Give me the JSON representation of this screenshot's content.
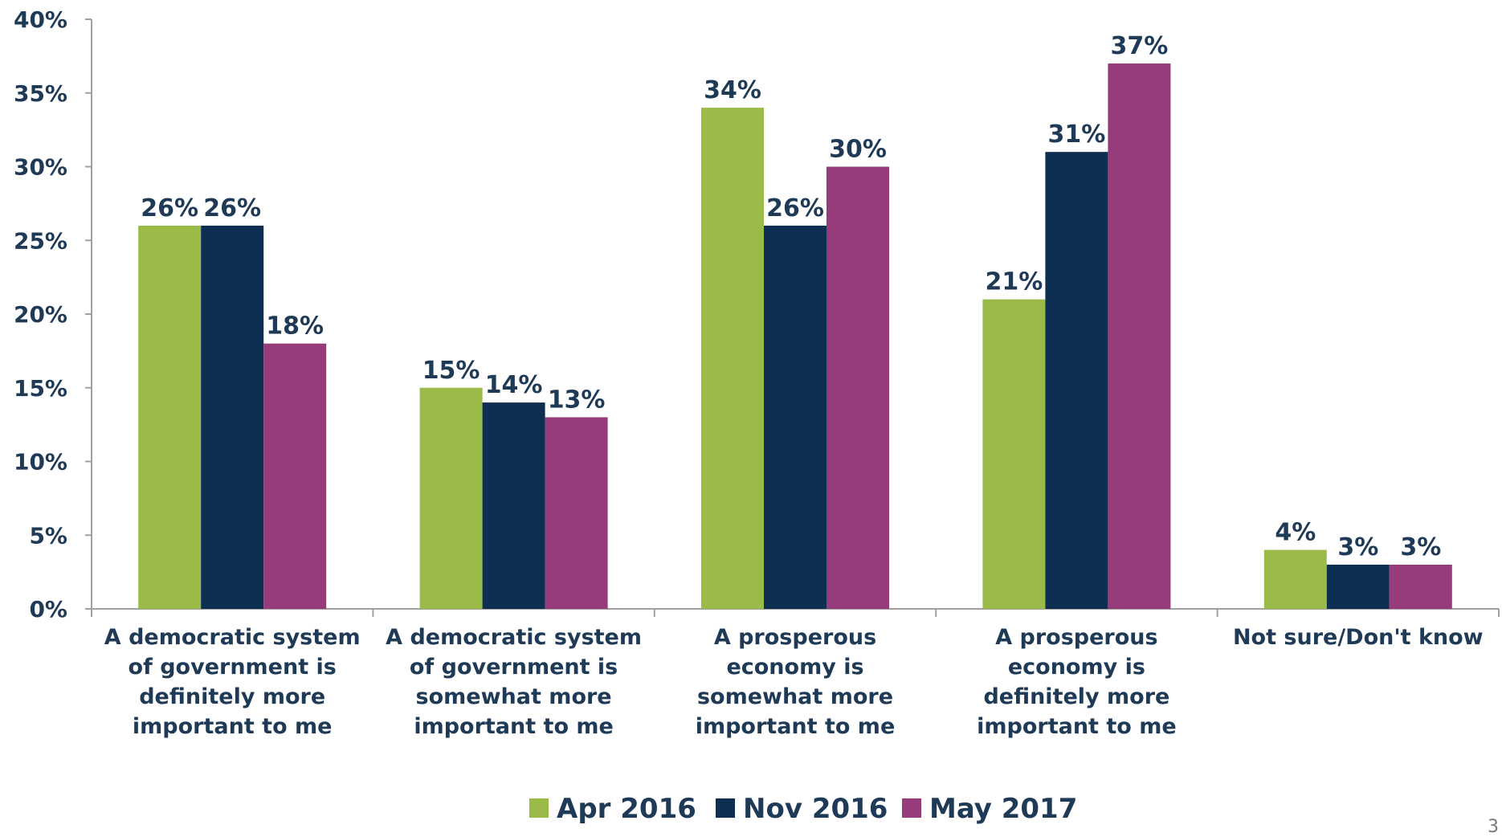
{
  "chart_data": {
    "type": "bar",
    "title": "",
    "xlabel": "",
    "ylabel": "",
    "ylim": [
      0,
      40
    ],
    "yticks": [
      0,
      5,
      10,
      15,
      20,
      25,
      30,
      35,
      40
    ],
    "ytick_format": "{v}%",
    "value_format": "{v}%",
    "grid": false,
    "legend_position": "bottom",
    "categories": [
      [
        "A democratic system",
        "of government is",
        "definitely more",
        "important to me"
      ],
      [
        "A democratic system",
        "of government is",
        "somewhat more",
        "important to me"
      ],
      [
        "A prosperous",
        "economy is",
        "somewhat more",
        "important to me"
      ],
      [
        "A prosperous",
        "economy is",
        "definitely more",
        "important to me"
      ],
      [
        "Not sure/Don't know"
      ]
    ],
    "series": [
      {
        "name": "Apr 2016",
        "color": "#9bbb48",
        "values": [
          26,
          15,
          34,
          21,
          4
        ]
      },
      {
        "name": "Nov 2016",
        "color": "#0e2f52",
        "values": [
          26,
          14,
          26,
          31,
          3
        ]
      },
      {
        "name": "May 2017",
        "color": "#963c7b",
        "values": [
          18,
          13,
          30,
          37,
          3
        ]
      }
    ]
  },
  "page_number": "3"
}
